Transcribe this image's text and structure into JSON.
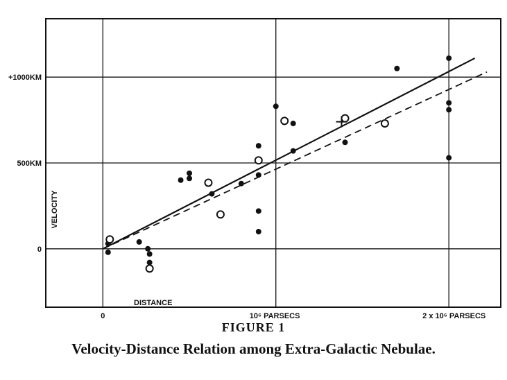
{
  "chart_data": {
    "type": "scatter",
    "title": "FIGURE 1",
    "caption": "Velocity-Distance Relation among Extra-Galactic Nebulae.",
    "xlabel": "DISTANCE",
    "ylabel": "VELOCITY",
    "xlim": [
      -0.33,
      2.3
    ],
    "ylim": [
      -340,
      1340
    ],
    "x_ticks": [
      {
        "value": 0,
        "label": "0"
      },
      {
        "value": 1,
        "label": "10⁶ PARSECS"
      },
      {
        "value": 2,
        "label": "2 x 10⁶ PARSECS"
      }
    ],
    "y_ticks": [
      {
        "value": 0,
        "label": "0"
      },
      {
        "value": 500,
        "label": "500KM"
      },
      {
        "value": 1000,
        "label": "+1000KM"
      }
    ],
    "grid": true,
    "series": [
      {
        "marker": "filled-circle",
        "points": [
          {
            "x": 0.03,
            "y": -20
          },
          {
            "x": 0.03,
            "y": 30
          },
          {
            "x": 0.21,
            "y": 40
          },
          {
            "x": 0.26,
            "y": 0
          },
          {
            "x": 0.27,
            "y": -30
          },
          {
            "x": 0.27,
            "y": -80
          },
          {
            "x": 0.45,
            "y": 400
          },
          {
            "x": 0.5,
            "y": 410
          },
          {
            "x": 0.5,
            "y": 440
          },
          {
            "x": 0.63,
            "y": 320
          },
          {
            "x": 0.8,
            "y": 380
          },
          {
            "x": 0.9,
            "y": 600
          },
          {
            "x": 0.9,
            "y": 430
          },
          {
            "x": 0.9,
            "y": 220
          },
          {
            "x": 0.9,
            "y": 100
          },
          {
            "x": 1.0,
            "y": 830
          },
          {
            "x": 1.1,
            "y": 730
          },
          {
            "x": 1.1,
            "y": 570
          },
          {
            "x": 1.4,
            "y": 620
          },
          {
            "x": 1.7,
            "y": 1050
          },
          {
            "x": 2.0,
            "y": 1110
          },
          {
            "x": 2.0,
            "y": 850
          },
          {
            "x": 2.0,
            "y": 810
          },
          {
            "x": 2.0,
            "y": 530
          }
        ]
      },
      {
        "marker": "open-circle",
        "points": [
          {
            "x": 0.04,
            "y": 55
          },
          {
            "x": 0.27,
            "y": -115
          },
          {
            "x": 0.61,
            "y": 385
          },
          {
            "x": 0.68,
            "y": 200
          },
          {
            "x": 0.9,
            "y": 515
          },
          {
            "x": 1.05,
            "y": 745
          },
          {
            "x": 1.4,
            "y": 760
          },
          {
            "x": 1.63,
            "y": 730
          }
        ]
      },
      {
        "marker": "cross",
        "points": [
          {
            "x": 1.38,
            "y": 740
          }
        ]
      }
    ],
    "fit_lines": [
      {
        "style": "solid",
        "from": [
          0,
          0
        ],
        "to": [
          2.15,
          1110
        ]
      },
      {
        "style": "dashed",
        "from": [
          0,
          0
        ],
        "to": [
          2.22,
          1030
        ]
      }
    ]
  }
}
